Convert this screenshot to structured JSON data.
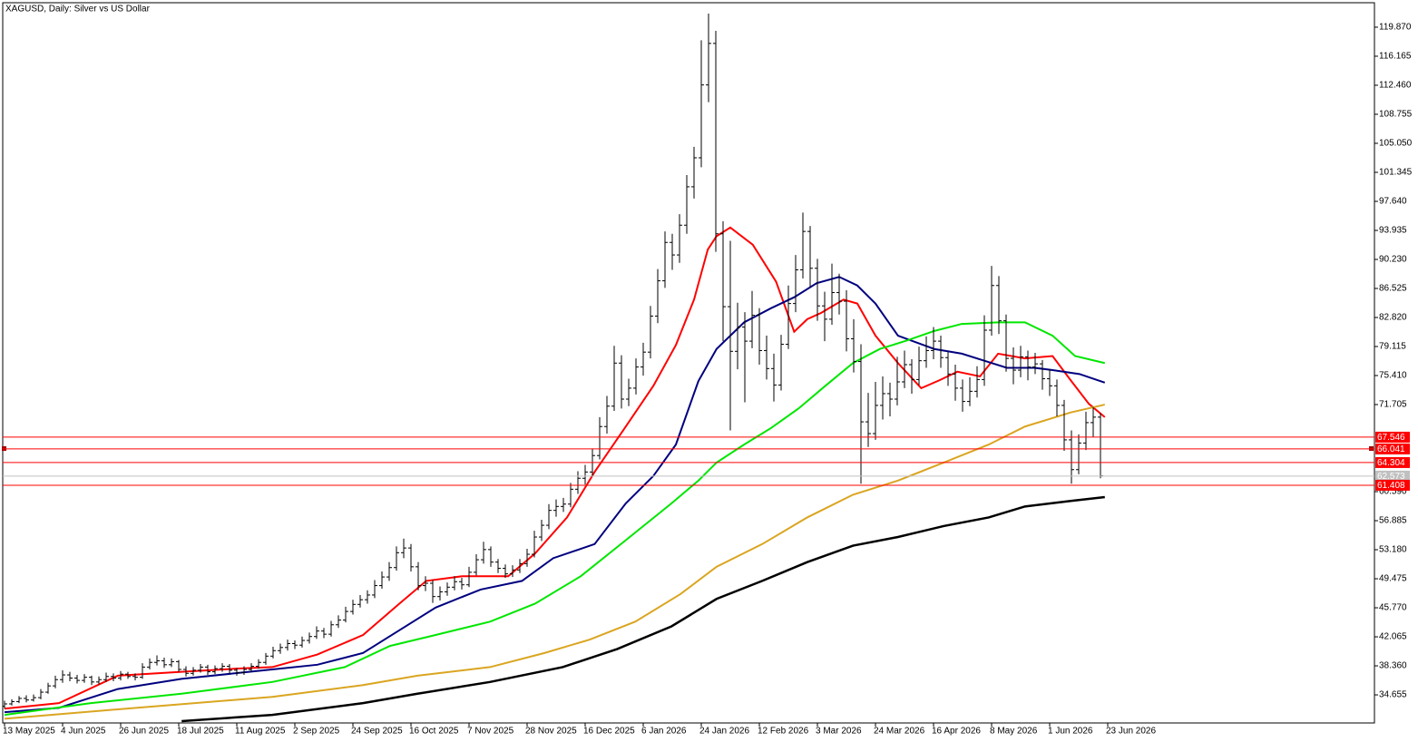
{
  "chart_data": {
    "type": "ohlc",
    "title": "XAGUSD, Daily:  Silver vs US Dollar",
    "bar_color": "#000000",
    "xlim": [
      -0.25,
      188.75
    ],
    "ylim": [
      31.07,
      123.34
    ],
    "xticks": [
      {
        "value": 0,
        "label": "13 May 2025"
      },
      {
        "value": 8,
        "label": "4 Jun 2025"
      },
      {
        "value": 16,
        "label": "26 Jun 2025"
      },
      {
        "value": 24,
        "label": "18 Jul 2025"
      },
      {
        "value": 32,
        "label": "11 Aug 2025"
      },
      {
        "value": 40,
        "label": "2 Sep 2025"
      },
      {
        "value": 48,
        "label": "24 Sep 2025"
      },
      {
        "value": 56,
        "label": "16 Oct 2025"
      },
      {
        "value": 64,
        "label": "7 Nov 2025"
      },
      {
        "value": 72,
        "label": "28 Nov 2025"
      },
      {
        "value": 80,
        "label": "16 Dec 2025"
      },
      {
        "value": 88,
        "label": "6 Jan 2026"
      },
      {
        "value": 96,
        "label": "24 Jan 2026"
      },
      {
        "value": 104,
        "label": "12 Feb 2026"
      },
      {
        "value": 112,
        "label": "3 Mar 2026"
      },
      {
        "value": 120,
        "label": "24 Mar 2026"
      },
      {
        "value": 128,
        "label": "16 Apr 2026"
      },
      {
        "value": 136,
        "label": "8 May 2026"
      },
      {
        "value": 144,
        "label": "1 Jun 2026"
      },
      {
        "value": 152,
        "label": "23 Jun 2026"
      }
    ],
    "yticks": [
      {
        "value": 119.87,
        "label": "119.870"
      },
      {
        "value": 116.165,
        "label": "116.165"
      },
      {
        "value": 112.46,
        "label": "112.460"
      },
      {
        "value": 108.755,
        "label": "108.755"
      },
      {
        "value": 105.05,
        "label": "105.050"
      },
      {
        "value": 101.345,
        "label": "101.345"
      },
      {
        "value": 97.64,
        "label": "97.640"
      },
      {
        "value": 93.935,
        "label": "93.935"
      },
      {
        "value": 90.23,
        "label": "90.230"
      },
      {
        "value": 86.525,
        "label": "86.525"
      },
      {
        "value": 82.82,
        "label": "82.820"
      },
      {
        "value": 79.115,
        "label": "79.115"
      },
      {
        "value": 75.41,
        "label": "75.410"
      },
      {
        "value": 71.705,
        "label": "71.705"
      },
      {
        "value": 60.59,
        "label": "60.590"
      },
      {
        "value": 56.885,
        "label": "56.885"
      },
      {
        "value": 53.18,
        "label": "53.180"
      },
      {
        "value": 49.475,
        "label": "49.475"
      },
      {
        "value": 45.77,
        "label": "45.770"
      },
      {
        "value": 42.065,
        "label": "42.065"
      },
      {
        "value": 38.36,
        "label": "38.360"
      },
      {
        "value": 34.655,
        "label": "34.655"
      }
    ],
    "levels": [
      {
        "value": 67.546,
        "color": "#ff0000"
      },
      {
        "value": 66.041,
        "color": "#ff0000"
      },
      {
        "value": 64.304,
        "color": "#ff0000"
      },
      {
        "value": 62.573,
        "color": "#c0c0c0"
      },
      {
        "value": 61.408,
        "color": "#ff0000"
      }
    ],
    "bars": [
      [
        33.2,
        33.9,
        32.9,
        33.5
      ],
      [
        33.5,
        34.1,
        33.3,
        33.8
      ],
      [
        33.8,
        34.5,
        33.6,
        34.2
      ],
      [
        34.2,
        34.6,
        33.7,
        34.0
      ],
      [
        34.0,
        34.7,
        33.8,
        34.3
      ],
      [
        34.3,
        35.4,
        34.1,
        35.0
      ],
      [
        35.0,
        36.2,
        34.8,
        35.8
      ],
      [
        35.8,
        37.1,
        35.5,
        36.6
      ],
      [
        36.6,
        37.8,
        36.2,
        37.2
      ],
      [
        37.2,
        37.6,
        36.4,
        36.8
      ],
      [
        36.8,
        37.2,
        36.1,
        36.5
      ],
      [
        36.5,
        37.3,
        36.2,
        36.9
      ],
      [
        36.9,
        37.1,
        35.9,
        36.3
      ],
      [
        36.3,
        37.0,
        36.0,
        36.6
      ],
      [
        36.6,
        37.5,
        36.3,
        37.0
      ],
      [
        37.0,
        37.4,
        36.4,
        36.8
      ],
      [
        36.8,
        37.7,
        36.5,
        37.3
      ],
      [
        37.3,
        37.6,
        36.7,
        37.0
      ],
      [
        37.0,
        37.4,
        36.5,
        36.9
      ],
      [
        36.9,
        38.7,
        36.7,
        38.2
      ],
      [
        38.2,
        39.3,
        37.9,
        38.8
      ],
      [
        38.8,
        39.7,
        38.4,
        39.0
      ],
      [
        39.0,
        39.4,
        38.1,
        38.5
      ],
      [
        38.5,
        39.3,
        38.2,
        38.9
      ],
      [
        38.9,
        39.1,
        37.6,
        37.9
      ],
      [
        37.9,
        38.3,
        37.0,
        37.4
      ],
      [
        37.4,
        38.2,
        37.1,
        37.8
      ],
      [
        37.8,
        38.6,
        37.5,
        38.2
      ],
      [
        38.2,
        38.5,
        37.2,
        37.6
      ],
      [
        37.6,
        38.4,
        37.3,
        38.0
      ],
      [
        38.0,
        38.7,
        37.6,
        38.3
      ],
      [
        38.3,
        38.6,
        37.4,
        37.8
      ],
      [
        37.8,
        38.1,
        37.1,
        37.5
      ],
      [
        37.5,
        38.3,
        37.2,
        37.9
      ],
      [
        37.9,
        38.7,
        37.6,
        38.3
      ],
      [
        38.3,
        39.2,
        38.0,
        38.8
      ],
      [
        38.8,
        40.0,
        38.5,
        39.6
      ],
      [
        39.6,
        40.8,
        39.3,
        40.3
      ],
      [
        40.3,
        41.2,
        39.9,
        40.7
      ],
      [
        40.7,
        41.7,
        40.3,
        41.2
      ],
      [
        41.2,
        41.6,
        40.5,
        41.0
      ],
      [
        41.0,
        42.1,
        40.7,
        41.6
      ],
      [
        41.6,
        42.6,
        41.2,
        42.1
      ],
      [
        42.1,
        43.4,
        41.8,
        42.8
      ],
      [
        42.8,
        43.2,
        41.9,
        42.4
      ],
      [
        42.4,
        44.1,
        42.1,
        43.6
      ],
      [
        43.6,
        44.8,
        43.2,
        44.2
      ],
      [
        44.2,
        45.9,
        43.9,
        45.3
      ],
      [
        45.3,
        46.8,
        44.9,
        46.2
      ],
      [
        46.2,
        47.4,
        45.8,
        46.8
      ],
      [
        46.8,
        48.0,
        46.3,
        47.4
      ],
      [
        47.4,
        49.3,
        47.0,
        48.6
      ],
      [
        48.6,
        50.4,
        48.2,
        49.7
      ],
      [
        49.7,
        51.6,
        49.2,
        50.9
      ],
      [
        50.9,
        53.6,
        50.5,
        52.8
      ],
      [
        52.8,
        54.6,
        52.1,
        53.4
      ],
      [
        53.4,
        53.9,
        50.4,
        51.0
      ],
      [
        51.0,
        51.6,
        48.0,
        48.6
      ],
      [
        48.6,
        49.8,
        47.9,
        48.9
      ],
      [
        48.9,
        49.3,
        46.4,
        47.2
      ],
      [
        47.2,
        48.5,
        46.7,
        47.8
      ],
      [
        47.8,
        49.0,
        47.3,
        48.4
      ],
      [
        48.4,
        49.8,
        48.0,
        49.1
      ],
      [
        49.1,
        49.6,
        48.1,
        48.7
      ],
      [
        48.7,
        51.0,
        48.4,
        50.3
      ],
      [
        50.3,
        52.6,
        49.9,
        51.9
      ],
      [
        51.9,
        54.2,
        51.4,
        53.2
      ],
      [
        53.2,
        53.6,
        51.0,
        51.6
      ],
      [
        51.6,
        52.0,
        50.2,
        50.8
      ],
      [
        50.8,
        51.3,
        49.6,
        50.1
      ],
      [
        50.1,
        51.2,
        49.7,
        50.6
      ],
      [
        50.6,
        52.0,
        50.2,
        51.4
      ],
      [
        51.4,
        53.3,
        51.0,
        52.6
      ],
      [
        52.6,
        55.6,
        52.2,
        54.8
      ],
      [
        54.8,
        57.0,
        54.3,
        56.3
      ],
      [
        56.3,
        59.0,
        55.8,
        58.2
      ],
      [
        58.2,
        59.6,
        57.4,
        58.7
      ],
      [
        58.7,
        59.8,
        58.0,
        59.0
      ],
      [
        59.0,
        61.7,
        58.6,
        60.9
      ],
      [
        60.9,
        63.2,
        60.3,
        62.3
      ],
      [
        62.3,
        64.0,
        61.5,
        63.1
      ],
      [
        63.1,
        66.1,
        62.6,
        65.2
      ],
      [
        65.2,
        70.1,
        64.7,
        68.9
      ],
      [
        68.9,
        72.8,
        68.0,
        71.5
      ],
      [
        71.5,
        79.2,
        70.9,
        77.0
      ],
      [
        77.0,
        78.0,
        71.2,
        72.4
      ],
      [
        72.4,
        75.0,
        71.5,
        73.8
      ],
      [
        73.8,
        77.6,
        73.0,
        76.5
      ],
      [
        76.5,
        79.6,
        75.4,
        78.4
      ],
      [
        78.4,
        84.3,
        77.6,
        83.0
      ],
      [
        83.0,
        89.0,
        82.1,
        87.5
      ],
      [
        87.5,
        93.8,
        86.6,
        92.4
      ],
      [
        92.4,
        93.5,
        88.9,
        90.8
      ],
      [
        90.8,
        96.0,
        89.8,
        94.6
      ],
      [
        94.6,
        101.0,
        93.5,
        99.5
      ],
      [
        99.5,
        104.6,
        98.0,
        103.2
      ],
      [
        103.2,
        118.2,
        102.0,
        112.5
      ],
      [
        112.5,
        121.6,
        110.3,
        117.8
      ],
      [
        117.8,
        119.4,
        91.2,
        93.5
      ],
      [
        93.5,
        95.1,
        79.8,
        84.2
      ],
      [
        84.2,
        92.6,
        68.4,
        78.5
      ],
      [
        78.5,
        84.7,
        76.2,
        81.6
      ],
      [
        81.6,
        83.5,
        72.0,
        79.8
      ],
      [
        79.8,
        86.2,
        78.9,
        83.1
      ],
      [
        83.1,
        84.0,
        76.8,
        78.6
      ],
      [
        78.6,
        80.5,
        74.9,
        76.3
      ],
      [
        76.3,
        78.2,
        72.1,
        74.2
      ],
      [
        74.2,
        80.6,
        73.5,
        79.4
      ],
      [
        79.4,
        86.9,
        78.8,
        84.6
      ],
      [
        84.6,
        90.8,
        83.5,
        88.9
      ],
      [
        88.9,
        96.2,
        87.8,
        93.8
      ],
      [
        93.8,
        94.5,
        86.7,
        89.1
      ],
      [
        89.1,
        90.3,
        82.4,
        84.3
      ],
      [
        84.3,
        86.1,
        79.8,
        82.6
      ],
      [
        82.6,
        89.7,
        81.9,
        86.0
      ],
      [
        86.0,
        88.4,
        83.2,
        84.9
      ],
      [
        84.9,
        86.3,
        78.5,
        80.1
      ],
      [
        80.1,
        82.6,
        75.8,
        77.2
      ],
      [
        77.2,
        79.4,
        61.6,
        69.5
      ],
      [
        69.5,
        73.2,
        66.3,
        68.0
      ],
      [
        68.0,
        74.6,
        67.2,
        71.6
      ],
      [
        71.6,
        75.3,
        69.8,
        73.1
      ],
      [
        73.1,
        74.5,
        70.2,
        72.4
      ],
      [
        72.4,
        77.8,
        71.6,
        74.6
      ],
      [
        74.6,
        78.6,
        73.8,
        76.8
      ],
      [
        76.8,
        77.5,
        73.1,
        74.9
      ],
      [
        74.9,
        79.1,
        74.2,
        77.3
      ],
      [
        77.3,
        80.4,
        76.4,
        78.6
      ],
      [
        78.6,
        81.6,
        77.5,
        79.8
      ],
      [
        79.8,
        80.5,
        76.4,
        77.7
      ],
      [
        77.7,
        78.4,
        74.1,
        75.6
      ],
      [
        75.6,
        76.8,
        72.2,
        73.8
      ],
      [
        73.8,
        74.9,
        70.8,
        72.1
      ],
      [
        72.1,
        75.2,
        71.5,
        73.4
      ],
      [
        73.4,
        76.6,
        72.6,
        74.9
      ],
      [
        74.9,
        83.1,
        74.1,
        81.2
      ],
      [
        81.2,
        89.4,
        80.5,
        86.9
      ],
      [
        86.9,
        88.1,
        80.7,
        82.4
      ],
      [
        82.4,
        83.2,
        75.9,
        77.6
      ],
      [
        77.6,
        79.0,
        74.3,
        76.1
      ],
      [
        76.1,
        79.2,
        75.2,
        77.8
      ],
      [
        77.8,
        78.6,
        74.8,
        76.5
      ],
      [
        76.5,
        78.3,
        75.6,
        76.9
      ],
      [
        76.9,
        77.4,
        73.6,
        75.0
      ],
      [
        75.0,
        76.2,
        72.8,
        74.1
      ],
      [
        74.1,
        74.9,
        70.2,
        71.6
      ],
      [
        71.6,
        72.3,
        65.8,
        67.2
      ],
      [
        67.2,
        68.4,
        61.6,
        63.4
      ],
      [
        63.4,
        67.9,
        62.8,
        66.8
      ],
      [
        66.8,
        70.8,
        65.9,
        69.4
      ],
      [
        69.4,
        71.4,
        67.6,
        70.1
      ],
      [
        70.1,
        70.6,
        62.3,
        62.6
      ]
    ],
    "ma_lines": [
      {
        "color": "#ff0000",
        "x": [
          0,
          7.5,
          15.6,
          24.4,
          31.9,
          36.9,
          43.1,
          49.4,
          54.4,
          58.1,
          63.1,
          69.4,
          73.1,
          77.5,
          81.3,
          85.6,
          89.4,
          92.5,
          95,
          96.9,
          98.1,
          100,
          103.1,
          106.3,
          108.8,
          110.6,
          112.5,
          115.6,
          117.5,
          120,
          123.1,
          126.3,
          128.8,
          131.3,
          134.4,
          136.9,
          140.6,
          144.4,
          146.9,
          149.4,
          151.6
        ],
        "values": [
          32.9,
          33.6,
          37.1,
          37.6,
          38.0,
          38.2,
          39.8,
          42.3,
          46.3,
          49.2,
          49.8,
          49.8,
          52.7,
          57.3,
          63.1,
          68.9,
          74.1,
          79.3,
          85.1,
          91.5,
          93.2,
          94.3,
          92.1,
          87.4,
          81.0,
          82.6,
          83.4,
          85.1,
          84.6,
          80.5,
          77.0,
          73.8,
          74.8,
          75.9,
          75.3,
          78.2,
          77.6,
          77.9,
          74.8,
          71.8,
          70.1
        ]
      },
      {
        "color": "#00007f",
        "x": [
          0,
          7.5,
          15.6,
          24.4,
          36.9,
          43.1,
          49.4,
          54.4,
          59.4,
          65.6,
          71.3,
          75.6,
          81.3,
          85.6,
          89.4,
          92.5,
          95.6,
          98.1,
          101.9,
          105.6,
          108.8,
          111.9,
          115,
          117.5,
          120,
          123.1,
          128.1,
          131.9,
          135,
          138.1,
          141.9,
          144.4,
          148.1,
          151.6
        ],
        "values": [
          32.45,
          33.0,
          35.4,
          36.7,
          37.9,
          38.5,
          40.0,
          42.9,
          45.8,
          48.1,
          49.2,
          52.1,
          53.9,
          59.1,
          62.6,
          66.6,
          74.7,
          78.8,
          82.2,
          84.0,
          85.4,
          87.2,
          88.0,
          86.9,
          84.6,
          80.5,
          78.8,
          78.2,
          77.3,
          76.4,
          76.4,
          76.1,
          75.6,
          74.5
        ]
      },
      {
        "color": "#00e600",
        "x": [
          0,
          11.9,
          24.4,
          36.9,
          46.9,
          53.1,
          59.4,
          66.9,
          73.1,
          79.4,
          85.6,
          91.9,
          95.6,
          98.1,
          101.9,
          105.6,
          109.4,
          113.1,
          116.9,
          120.6,
          124.4,
          128.1,
          131.9,
          136.9,
          140.6,
          144.4,
          147.5,
          151.6
        ],
        "values": [
          32.1,
          33.6,
          34.8,
          36.3,
          38.2,
          40.9,
          42.3,
          44.0,
          46.3,
          49.8,
          54.4,
          59.1,
          62.0,
          64.3,
          66.6,
          68.7,
          71.2,
          74.1,
          77.0,
          78.8,
          79.9,
          81.1,
          82.0,
          82.2,
          82.2,
          80.5,
          77.9,
          77.0
        ]
      },
      {
        "color": "#daa520",
        "x": [
          0,
          18.1,
          36.9,
          49.4,
          56.9,
          66.9,
          74.4,
          80.6,
          86.9,
          93.1,
          98.1,
          104.4,
          110.6,
          116.9,
          123.1,
          129.4,
          135.6,
          140.6,
          146.9,
          151.6
        ],
        "values": [
          31.6,
          33.0,
          34.4,
          35.9,
          37.1,
          38.2,
          40.0,
          41.7,
          44.0,
          47.5,
          51.0,
          53.9,
          57.3,
          60.2,
          62.0,
          64.3,
          66.6,
          68.9,
          70.7,
          71.7
        ]
      },
      {
        "color": "#000000",
        "x": [
          24.4,
          36.9,
          49.4,
          56.9,
          66.9,
          76.9,
          84.4,
          91.9,
          98.1,
          104.4,
          110.6,
          116.9,
          123.1,
          129.4,
          135.6,
          140.6,
          146.9,
          151.6
        ],
        "values": [
          31.3,
          32.1,
          33.6,
          34.8,
          36.3,
          38.2,
          40.5,
          43.4,
          46.9,
          49.2,
          51.6,
          53.7,
          54.8,
          56.2,
          57.3,
          58.7,
          59.4,
          59.9
        ]
      }
    ]
  }
}
